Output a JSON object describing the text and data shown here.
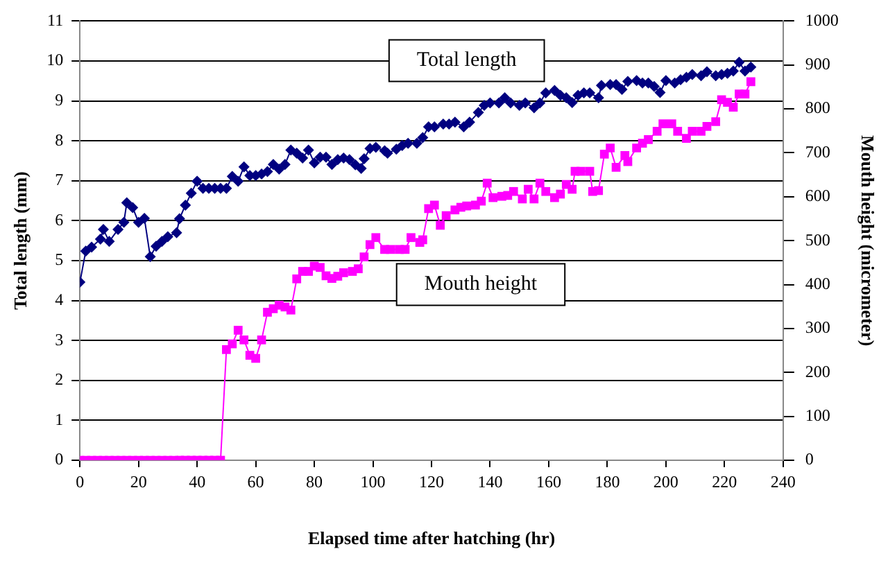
{
  "chart_data": {
    "type": "line",
    "xlabel": "Elapsed time after hatching (hr)",
    "ylabel": "Total length (mm)",
    "y2label": "Mouth height (micrometer)",
    "xlim": [
      0,
      240
    ],
    "xticks": [
      0,
      20,
      40,
      60,
      80,
      100,
      120,
      140,
      160,
      180,
      200,
      220,
      240
    ],
    "ylim": [
      0,
      11
    ],
    "yticks": [
      0,
      1,
      2,
      3,
      4,
      5,
      6,
      7,
      8,
      9,
      10,
      11
    ],
    "y2lim": [
      0,
      1000
    ],
    "y2ticks": [
      0,
      100,
      200,
      300,
      400,
      500,
      600,
      700,
      800,
      900,
      1000
    ],
    "grid": "y",
    "legend": false,
    "series": [
      {
        "name": "Total length",
        "color": "#000080",
        "marker": "diamond",
        "axis": "y",
        "x": [
          0,
          2,
          4,
          7,
          8,
          10,
          13,
          15,
          16,
          18,
          20,
          22,
          24,
          26,
          28,
          30,
          33,
          34,
          36,
          38,
          40,
          42,
          44,
          46,
          48,
          50,
          52,
          54,
          56,
          58,
          60,
          62,
          64,
          66,
          68,
          70,
          72,
          74,
          76,
          78,
          80,
          82,
          84,
          86,
          88,
          90,
          92,
          94,
          96,
          97,
          99,
          101,
          104,
          105,
          108,
          110,
          112,
          115,
          117,
          119,
          121,
          124,
          126,
          128,
          131,
          133,
          136,
          138,
          140,
          143,
          145,
          147,
          150,
          152,
          155,
          157,
          159,
          162,
          164,
          166,
          168,
          170,
          172,
          174,
          177,
          178,
          181,
          183,
          185,
          187,
          190,
          192,
          194,
          196,
          198,
          200,
          203,
          205,
          207,
          209,
          212,
          214,
          217,
          219,
          221,
          223,
          225,
          227,
          229
        ],
        "values": [
          4.46,
          5.24,
          5.34,
          5.54,
          5.78,
          5.48,
          5.78,
          5.96,
          6.45,
          6.33,
          5.96,
          6.06,
          5.1,
          5.36,
          5.48,
          5.6,
          5.7,
          6.05,
          6.39,
          6.69,
          6.99,
          6.81,
          6.81,
          6.81,
          6.81,
          6.81,
          7.11,
          6.99,
          7.35,
          7.13,
          7.13,
          7.17,
          7.23,
          7.41,
          7.29,
          7.41,
          7.77,
          7.69,
          7.57,
          7.77,
          7.45,
          7.59,
          7.59,
          7.41,
          7.53,
          7.57,
          7.53,
          7.4,
          7.31,
          7.55,
          7.81,
          7.84,
          7.75,
          7.69,
          7.79,
          7.88,
          7.94,
          7.94,
          8.08,
          8.35,
          8.35,
          8.42,
          8.42,
          8.47,
          8.35,
          8.47,
          8.71,
          8.89,
          8.95,
          8.95,
          9.08,
          8.95,
          8.89,
          8.95,
          8.83,
          8.95,
          9.2,
          9.26,
          9.14,
          9.08,
          8.96,
          9.14,
          9.2,
          9.2,
          9.08,
          9.39,
          9.41,
          9.41,
          9.29,
          9.49,
          9.51,
          9.45,
          9.45,
          9.36,
          9.21,
          9.51,
          9.45,
          9.53,
          9.59,
          9.66,
          9.63,
          9.73,
          9.63,
          9.66,
          9.69,
          9.75,
          9.97,
          9.75,
          9.85
        ]
      },
      {
        "name": "Mouth height",
        "color": "#ff00ff",
        "marker": "square",
        "axis": "y2",
        "x": [
          0,
          2,
          4,
          6,
          8,
          10,
          12,
          14,
          16,
          18,
          20,
          22,
          24,
          26,
          28,
          30,
          32,
          34,
          36,
          38,
          40,
          42,
          44,
          46,
          48,
          50,
          52,
          54,
          56,
          58,
          60,
          62,
          64,
          66,
          68,
          70,
          72,
          74,
          76,
          78,
          80,
          82,
          84,
          86,
          88,
          90,
          93,
          95,
          97,
          99,
          101,
          104,
          106,
          109,
          111,
          113,
          116,
          117,
          119,
          121,
          123,
          125,
          128,
          130,
          132,
          135,
          137,
          139,
          141,
          144,
          146,
          148,
          151,
          153,
          155,
          157,
          159,
          162,
          164,
          166,
          168,
          169,
          171,
          174,
          175,
          177,
          179,
          181,
          183,
          186,
          187,
          190,
          192,
          194,
          197,
          199,
          202,
          204,
          207,
          209,
          212,
          214,
          217,
          219,
          221,
          223,
          225,
          227,
          229
        ],
        "values": [
          0,
          0,
          0,
          0,
          0,
          0,
          0,
          0,
          0,
          0,
          0,
          0,
          0,
          0,
          0,
          0,
          0,
          0,
          0,
          0,
          0,
          0,
          0,
          0,
          0,
          252,
          265,
          296,
          274,
          239,
          232,
          274,
          337,
          345,
          353,
          349,
          342,
          413,
          430,
          430,
          442,
          439,
          420,
          414,
          419,
          427,
          430,
          436,
          463,
          491,
          507,
          480,
          480,
          480,
          480,
          507,
          496,
          502,
          573,
          581,
          535,
          557,
          570,
          576,
          579,
          581,
          590,
          631,
          598,
          601,
          603,
          612,
          595,
          617,
          595,
          631,
          612,
          598,
          606,
          628,
          617,
          658,
          658,
          658,
          612,
          614,
          697,
          711,
          667,
          694,
          680,
          711,
          722,
          730,
          749,
          766,
          766,
          749,
          733,
          749,
          749,
          760,
          771,
          821,
          815,
          804,
          834,
          834,
          862
        ]
      }
    ]
  }
}
